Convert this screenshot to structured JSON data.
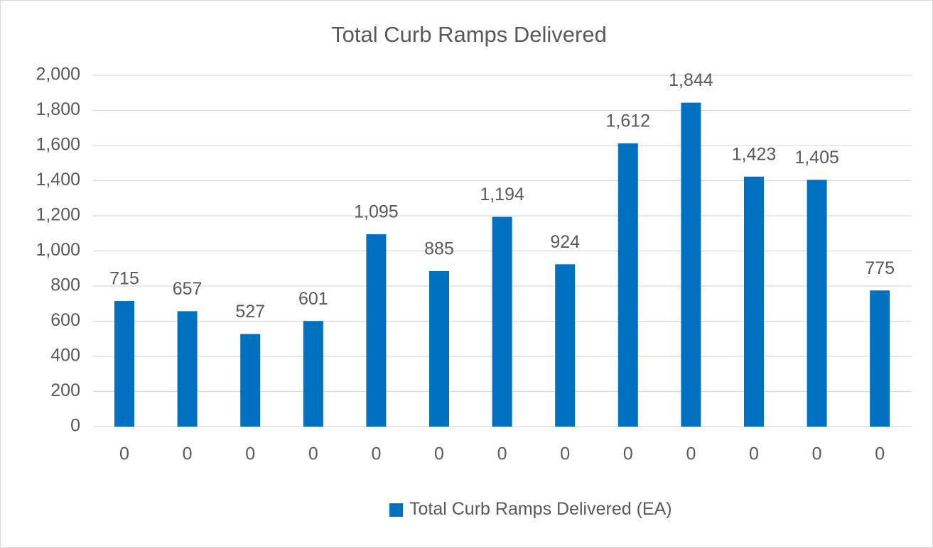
{
  "chart_data": {
    "type": "bar",
    "title": "Total Curb Ramps Delivered",
    "categories": [
      "0",
      "0",
      "0",
      "0",
      "0",
      "0",
      "0",
      "0",
      "0",
      "0",
      "0",
      "0",
      "0"
    ],
    "series": [
      {
        "name": "Total Curb Ramps Delivered (EA)",
        "color": "#0070c0",
        "values": [
          715,
          657,
          527,
          601,
          1095,
          885,
          1194,
          924,
          1612,
          1844,
          1423,
          1405,
          775
        ],
        "value_labels": [
          "715",
          "657",
          "527",
          "601",
          "1,095",
          "885",
          "1,194",
          "924",
          "1,612",
          "1,844",
          "1,423",
          "1,405",
          "775"
        ]
      }
    ],
    "ylim": [
      0,
      2000
    ],
    "yticks": [
      0,
      200,
      400,
      600,
      800,
      {
        "value": 1000,
        "label": "1,000"
      },
      {
        "value": 1200,
        "label": "1,200"
      },
      {
        "value": 1400,
        "label": "1,400"
      },
      {
        "value": 1600,
        "label": "1,600"
      },
      {
        "value": 1800,
        "label": "1,800"
      },
      {
        "value": 2000,
        "label": "2,000"
      }
    ],
    "grid": true,
    "legend": "bottom"
  }
}
